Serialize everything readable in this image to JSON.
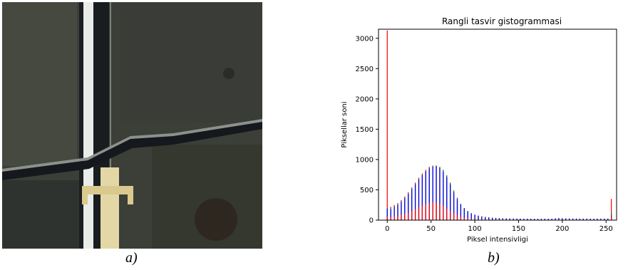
{
  "figure": {
    "caption_a": "a)",
    "caption_b": "b)"
  },
  "photo": {
    "content": "aerial satellite image of a road and a bridge over a canal with surrounding fields",
    "colors": {
      "field": "#3b3f38",
      "road": "#e9ece8",
      "bridge": "#e4d7a6",
      "canal": "#15181c"
    }
  },
  "chart_data": {
    "type": "bar",
    "title": "Rangli tasvir gistogrammasi",
    "xlabel": "Piksel intensivligi",
    "ylabel": "Piksellar soni",
    "xlim": [
      -10,
      262
    ],
    "ylim": [
      0,
      3150
    ],
    "xticks": [
      0,
      50,
      100,
      150,
      200,
      250
    ],
    "yticks": [
      0,
      500,
      1000,
      1500,
      2000,
      2500,
      3000
    ],
    "grid": false,
    "x": [
      0,
      4,
      8,
      12,
      16,
      20,
      24,
      28,
      32,
      36,
      40,
      44,
      48,
      52,
      56,
      60,
      64,
      68,
      72,
      76,
      80,
      84,
      88,
      92,
      96,
      100,
      104,
      108,
      112,
      116,
      120,
      124,
      128,
      132,
      136,
      140,
      144,
      148,
      152,
      156,
      160,
      164,
      168,
      172,
      176,
      180,
      184,
      188,
      192,
      196,
      200,
      204,
      208,
      212,
      216,
      220,
      224,
      228,
      232,
      236,
      240,
      244,
      248,
      252,
      256
    ],
    "series": [
      {
        "color": "#ff0000",
        "values": [
          3130,
          220,
          250,
          280,
          330,
          390,
          460,
          540,
          620,
          700,
          770,
          830,
          880,
          900,
          900,
          870,
          800,
          690,
          560,
          430,
          320,
          240,
          180,
          140,
          110,
          90,
          75,
          65,
          55,
          48,
          42,
          38,
          35,
          32,
          30,
          28,
          27,
          26,
          25,
          24,
          24,
          23,
          23,
          22,
          22,
          22,
          22,
          22,
          25,
          28,
          28,
          26,
          25,
          25,
          25,
          25,
          24,
          24,
          24,
          24,
          24,
          25,
          25,
          25,
          350
        ]
      },
      {
        "color": "#008000",
        "values": [
          200,
          190,
          230,
          260,
          310,
          370,
          440,
          520,
          600,
          680,
          750,
          810,
          860,
          890,
          900,
          880,
          830,
          740,
          620,
          490,
          370,
          270,
          200,
          150,
          115,
          90,
          72,
          60,
          50,
          44,
          38,
          34,
          31,
          29,
          27,
          26,
          25,
          24,
          24,
          23,
          23,
          22,
          22,
          22,
          22,
          22,
          22,
          22,
          28,
          32,
          30,
          28,
          26,
          26,
          25,
          25,
          24,
          24,
          24,
          24,
          24,
          24,
          24,
          25,
          120
        ]
      },
      {
        "color": "#0000ff",
        "values": [
          190,
          180,
          220,
          250,
          300,
          360,
          430,
          510,
          590,
          670,
          740,
          800,
          850,
          880,
          890,
          860,
          800,
          710,
          590,
          460,
          350,
          260,
          195,
          145,
          112,
          88,
          70,
          58,
          49,
          42,
          37,
          33,
          30,
          28,
          27,
          26,
          25,
          24,
          24,
          23,
          23,
          22,
          22,
          22,
          22,
          22,
          22,
          22,
          30,
          35,
          32,
          29,
          27,
          26,
          25,
          25,
          24,
          24,
          24,
          24,
          24,
          24,
          24,
          25,
          80
        ]
      },
      {
        "color": "#ff0000",
        "values": [
          60,
          50,
          60,
          70,
          85,
          100,
          120,
          150,
          180,
          210,
          240,
          265,
          285,
          295,
          290,
          270,
          235,
          190,
          150,
          110,
          80,
          55,
          40,
          30,
          22,
          17,
          14,
          12,
          10,
          9,
          8,
          7,
          7,
          6,
          6,
          6,
          6,
          6,
          6,
          6,
          6,
          6,
          6,
          6,
          6,
          6,
          6,
          6,
          7,
          7,
          7,
          7,
          7,
          7,
          7,
          7,
          7,
          7,
          7,
          7,
          7,
          7,
          7,
          7,
          60
        ]
      }
    ]
  }
}
